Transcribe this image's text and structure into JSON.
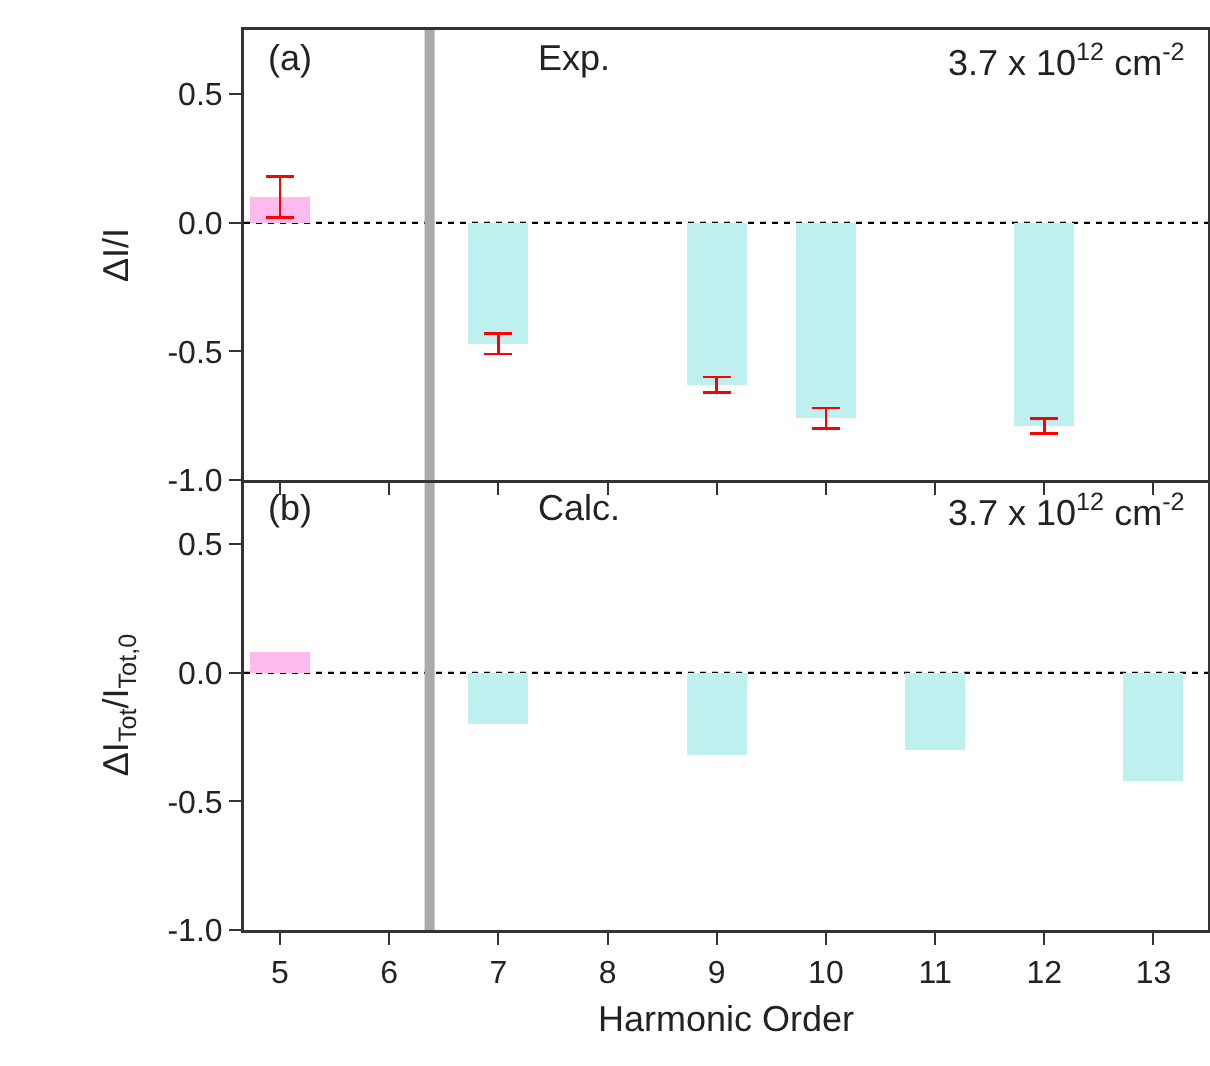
{
  "chart_data": [
    {
      "type": "bar",
      "ylabel": "ΔI/I",
      "annotations": [
        "(a)",
        "Exp.",
        "3.7 x 10$^{12}$ cm$^{-2}$"
      ],
      "x": [
        5,
        7,
        9,
        10,
        12
      ],
      "values": [
        0.1,
        -0.47,
        -0.63,
        -0.76,
        -0.79
      ],
      "errors": [
        0.08,
        0.04,
        0.03,
        0.04,
        0.03
      ],
      "colors": [
        "#ffbbee",
        "#bff0f0",
        "#bff0f0",
        "#bff0f0",
        "#bff0f0"
      ],
      "xlim": [
        4.67,
        13.5
      ],
      "xticks": [
        5,
        6,
        7,
        8,
        9,
        10,
        11,
        12,
        13
      ],
      "ylim": [
        -1,
        0.75
      ],
      "yticks": [
        {
          "value": -1,
          "label": "-1.0"
        },
        {
          "value": -0.5,
          "label": "-0.5"
        },
        {
          "value": 0,
          "label": "0.0"
        },
        {
          "value": 0.5,
          "label": "0.5"
        }
      ],
      "ref_lines": [
        {
          "axis": "x",
          "value": 6.37,
          "color": "#aaaaaa"
        },
        {
          "axis": "y",
          "value": 0,
          "color": "#000000",
          "line_style": "dotted"
        }
      ],
      "tick_labels": "y",
      "grid": false
    },
    {
      "type": "bar",
      "ylabel": "ΔI$_{Tot}$/I$_{Tot,0}$",
      "xlabel": "Harmonic Order",
      "annotations": [
        "(b)",
        "Calc.",
        "3.7 x 10$^{12}$ cm$^{-2}$"
      ],
      "x": [
        5,
        7,
        9,
        11,
        13
      ],
      "values": [
        0.08,
        -0.2,
        -0.32,
        -0.3,
        -0.42
      ],
      "colors": [
        "#ffbbee",
        "#bff0f0",
        "#bff0f0",
        "#bff0f0",
        "#bff0f0"
      ],
      "xlim": [
        4.67,
        13.5
      ],
      "xticks": [
        5,
        6,
        7,
        8,
        9,
        10,
        11,
        12,
        13
      ],
      "ylim": [
        -1,
        0.75
      ],
      "yticks": [
        {
          "value": -1,
          "label": "-1.0"
        },
        {
          "value": -0.5,
          "label": "-0.5"
        },
        {
          "value": 0,
          "label": "0.0"
        },
        {
          "value": 0.5,
          "label": "0.5"
        }
      ],
      "ref_lines": [
        {
          "axis": "x",
          "value": 6.37,
          "color": "#aaaaaa"
        },
        {
          "axis": "y",
          "value": 0,
          "color": "#000000",
          "line_style": "dotted"
        }
      ],
      "grid": false
    }
  ]
}
